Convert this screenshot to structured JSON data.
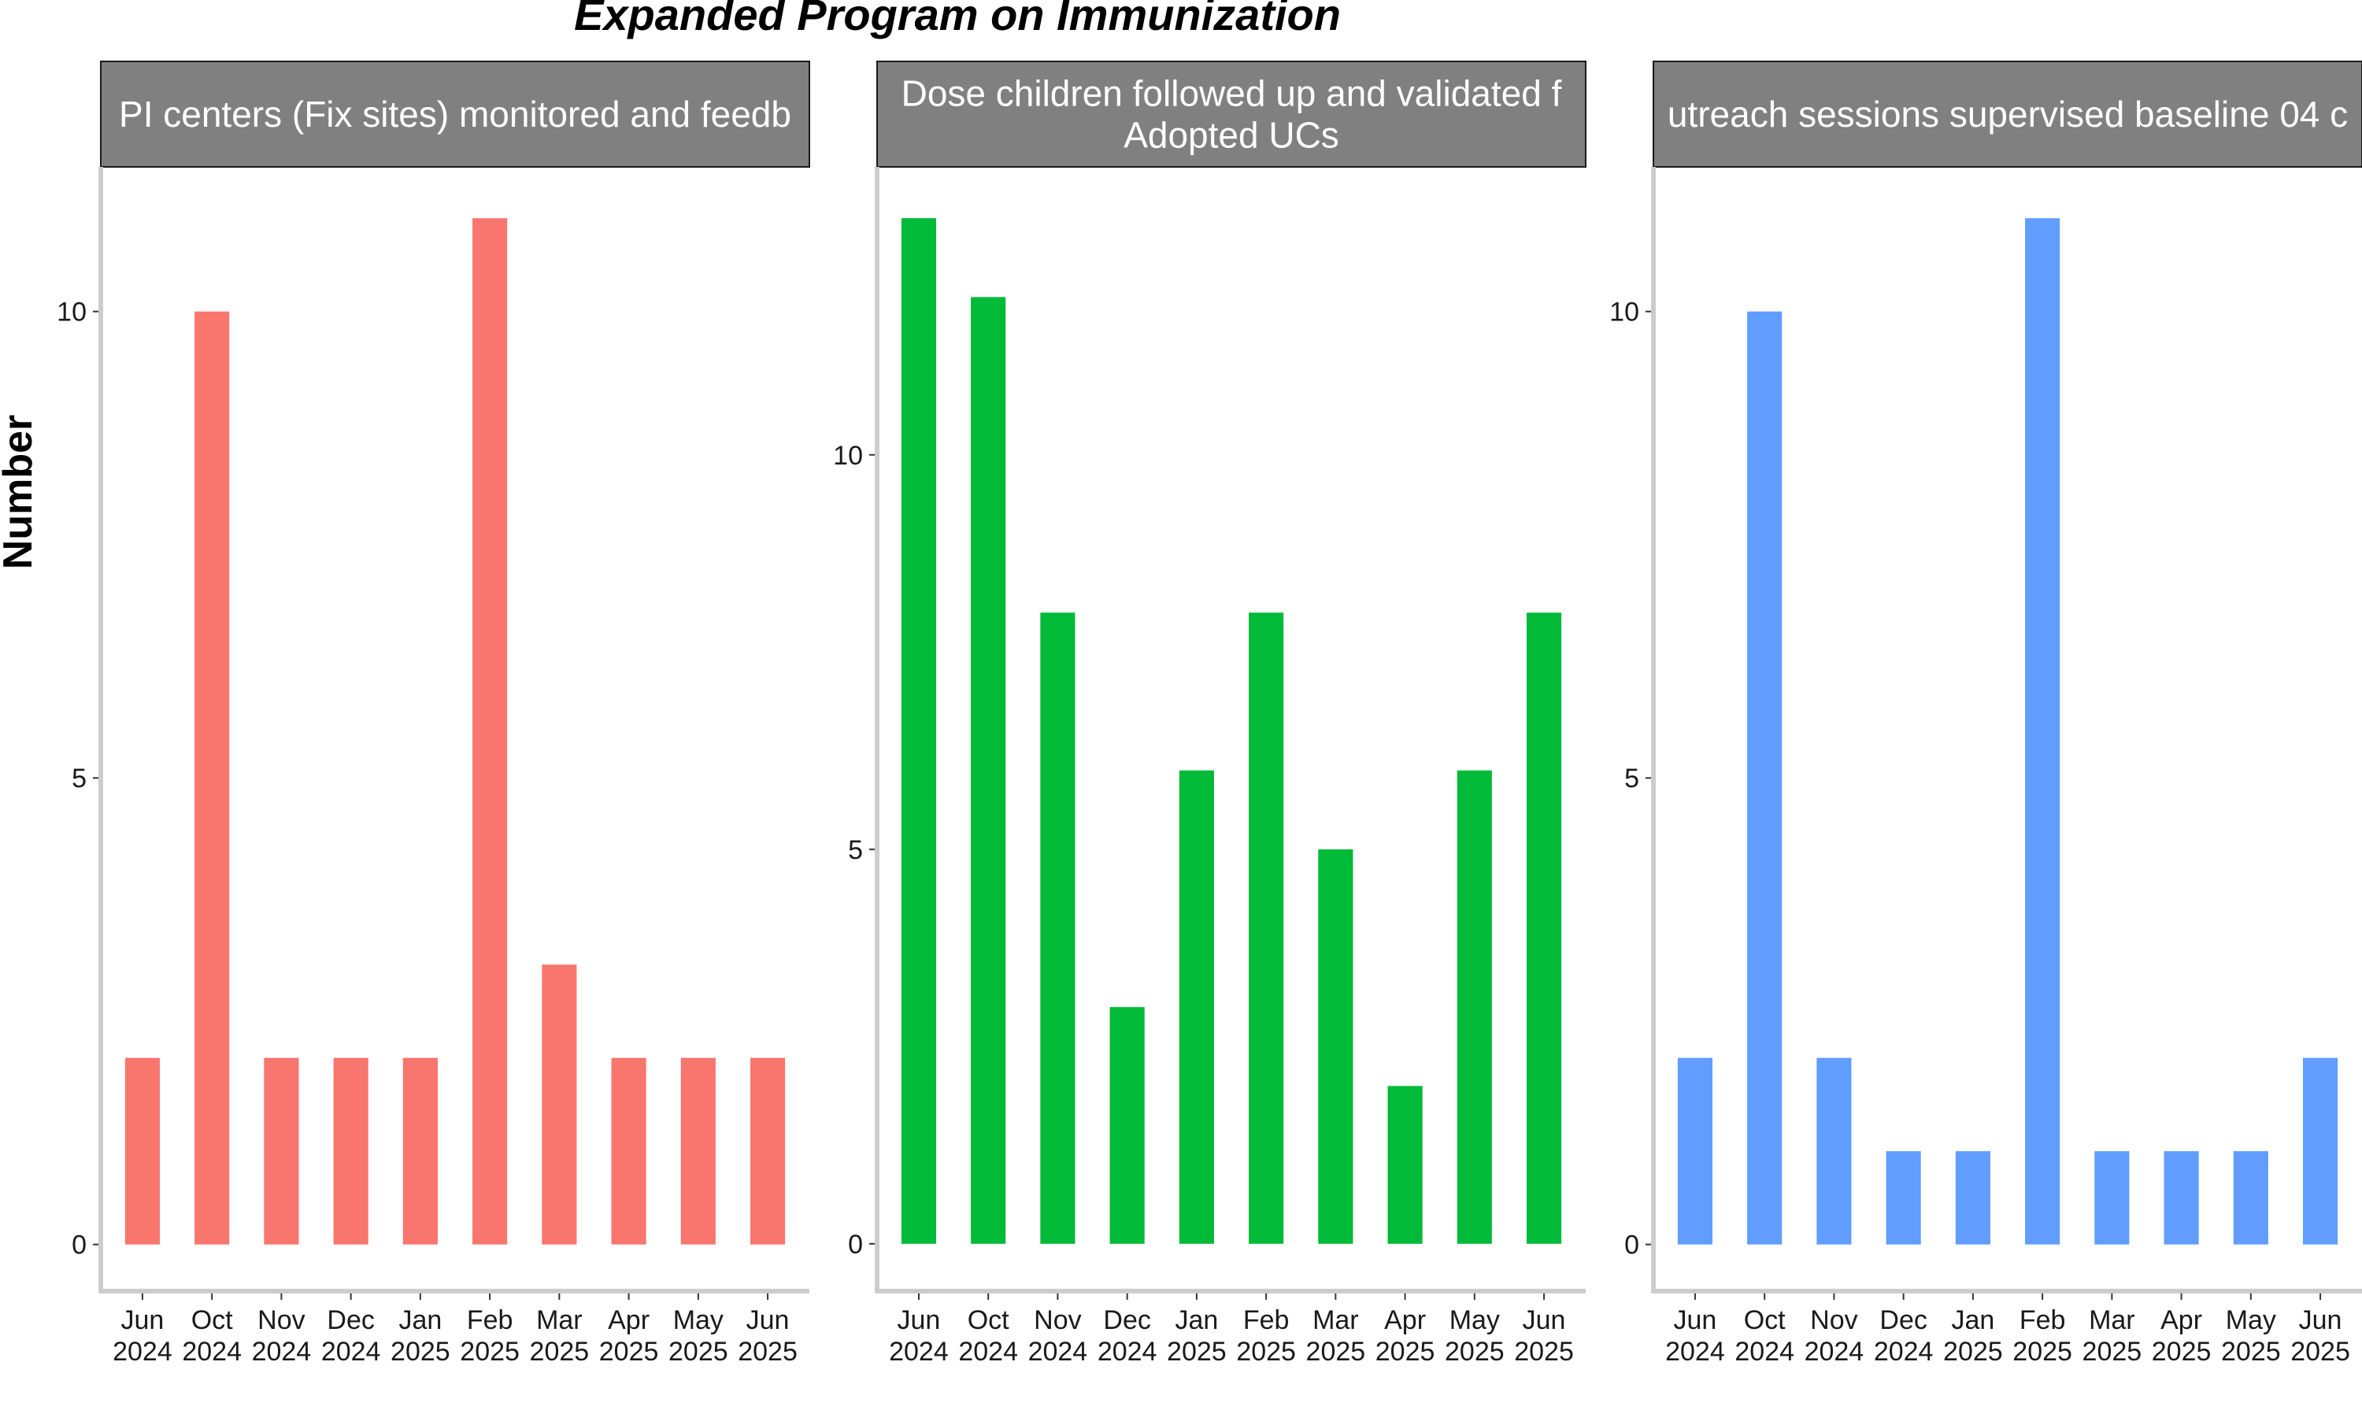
{
  "title": "Expanded Program on Immunization",
  "ylabel": "Number",
  "chart_data": [
    {
      "type": "bar",
      "strip_lines": [
        "PI centers (Fix sites) monitored and feedb"
      ],
      "color": "#F8766D",
      "categories": [
        "Jun\n2024",
        "Oct\n2024",
        "Nov\n2024",
        "Dec\n2024",
        "Jan\n2025",
        "Feb\n2025",
        "Mar\n2025",
        "Apr\n2025",
        "May\n2025",
        "Jun\n2025"
      ],
      "values": [
        2,
        10,
        2,
        2,
        2,
        11,
        3,
        2,
        2,
        2
      ],
      "ylim": [
        -0.5,
        11.55
      ],
      "yticks": [
        0,
        5,
        10
      ],
      "grid": false
    },
    {
      "type": "bar",
      "strip_lines": [
        "Dose children followed up and validated f",
        "Adopted UCs"
      ],
      "color": "#00BA38",
      "categories": [
        "Jun\n2024",
        "Oct\n2024",
        "Nov\n2024",
        "Dec\n2024",
        "Jan\n2025",
        "Feb\n2025",
        "Mar\n2025",
        "Apr\n2025",
        "May\n2025",
        "Jun\n2025"
      ],
      "values": [
        13,
        12,
        8,
        3,
        6,
        8,
        5,
        2,
        6,
        8
      ],
      "ylim": [
        -0.6,
        13.65
      ],
      "yticks": [
        0,
        5,
        10
      ],
      "grid": false
    },
    {
      "type": "bar",
      "strip_lines": [
        "utreach sessions supervised baseline 04 c"
      ],
      "color": "#619CFF",
      "categories": [
        "Jun\n2024",
        "Oct\n2024",
        "Nov\n2024",
        "Dec\n2024",
        "Jan\n2025",
        "Feb\n2025",
        "Mar\n2025",
        "Apr\n2025",
        "May\n2025",
        "Jun\n2025"
      ],
      "values": [
        2,
        10,
        2,
        1,
        1,
        11,
        1,
        1,
        1,
        2
      ],
      "ylim": [
        -0.5,
        11.55
      ],
      "yticks": [
        0,
        5,
        10
      ],
      "grid": false
    }
  ]
}
